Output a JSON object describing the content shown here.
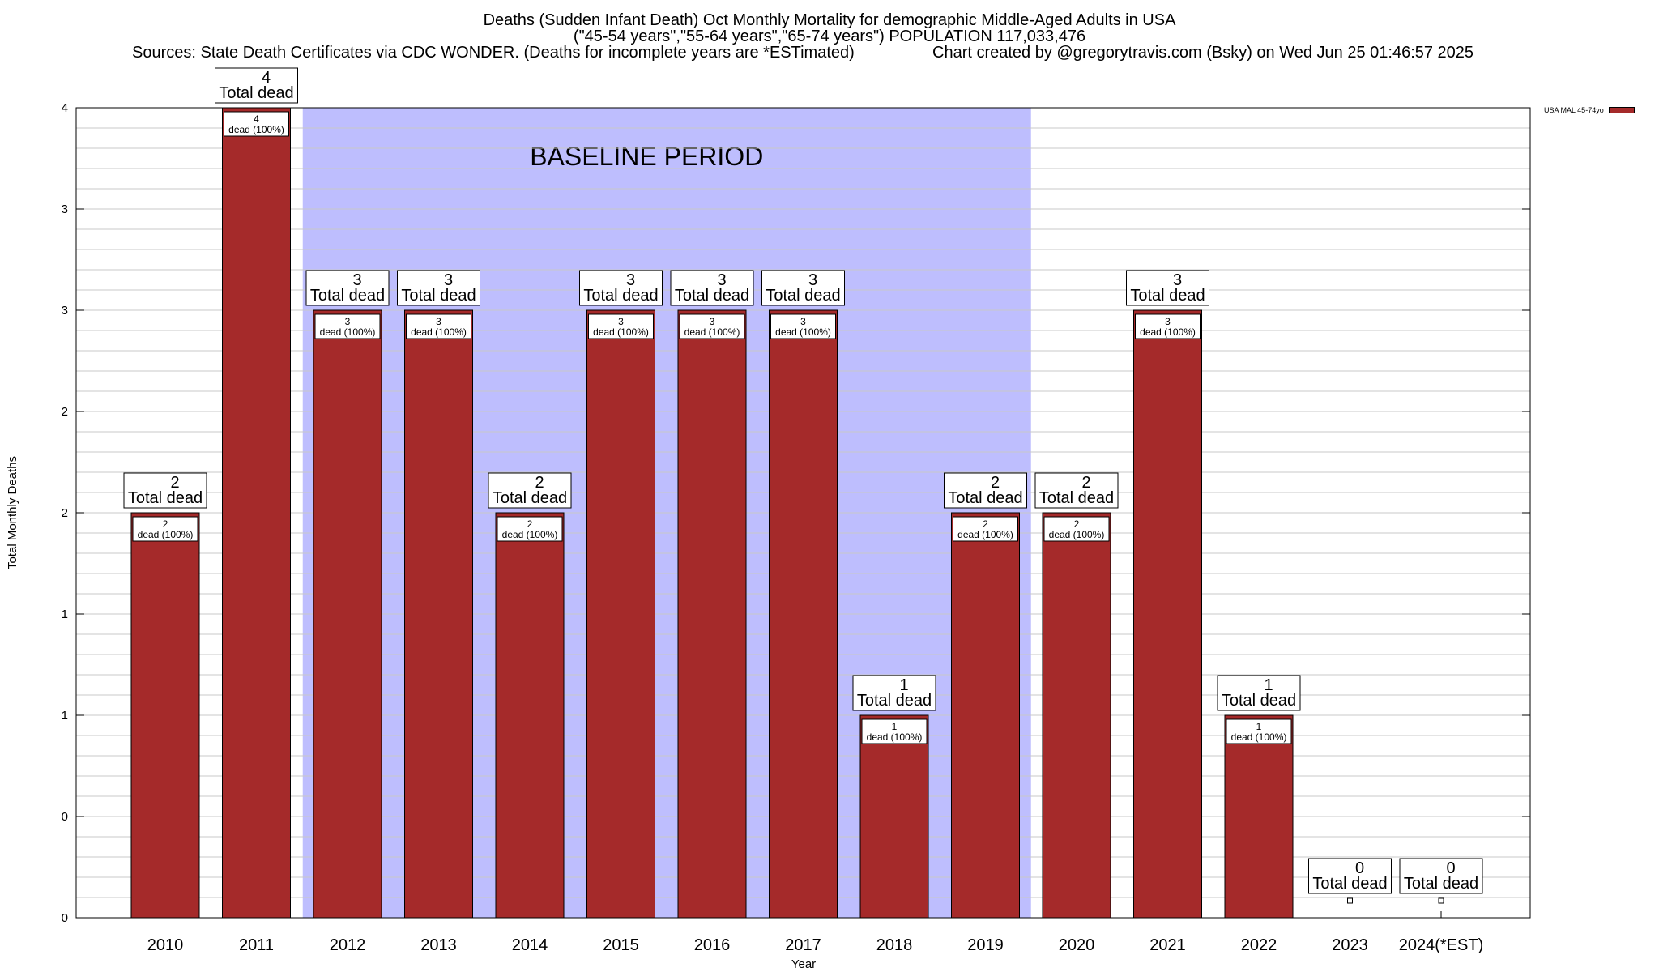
{
  "chart_data": {
    "type": "bar",
    "title": "Deaths (Sudden Infant Death) Oct Monthly Mortality for demographic Middle-Aged Adults in USA",
    "subtitle": "(\"45-54 years\",\"55-64 years\",\"65-74 years\") POPULATION 117,033,476",
    "sources": "Sources: State Death Certificates via CDC WONDER. (Deaths for incomplete years are *ESTimated)",
    "credit": "Chart created by @gregorytravis.com (Bsky) on Wed Jun 25 01:46:57 2025",
    "xlabel": "Year",
    "ylabel": "Total Monthly Deaths",
    "categories": [
      "2010",
      "2011",
      "2012",
      "2013",
      "2014",
      "2015",
      "2016",
      "2017",
      "2018",
      "2019",
      "2020",
      "2021",
      "2022",
      "2023",
      "2024(*EST)"
    ],
    "series": [
      {
        "name": "USA MAL 45-74yo",
        "color": "#a52a2a",
        "values": [
          2,
          4,
          3,
          3,
          2,
          3,
          3,
          3,
          1,
          2,
          2,
          3,
          1,
          0,
          0
        ]
      }
    ],
    "ylim": [
      0,
      4
    ],
    "y_ticks": [
      0,
      0.5,
      1,
      1.5,
      2,
      2.5,
      3,
      3.5,
      4
    ],
    "y_tick_labels": [
      "0",
      "0",
      "1",
      "1",
      "2",
      "2",
      "3",
      "3",
      "4"
    ],
    "total_label_suffix": "Total dead",
    "inner_label_suffix": "dead (100%)",
    "baseline": {
      "label": "BASELINE PERIOD",
      "from": "2012",
      "to": "2019",
      "color": "#bebefe"
    },
    "grid": true,
    "legend_position": "top-right"
  }
}
